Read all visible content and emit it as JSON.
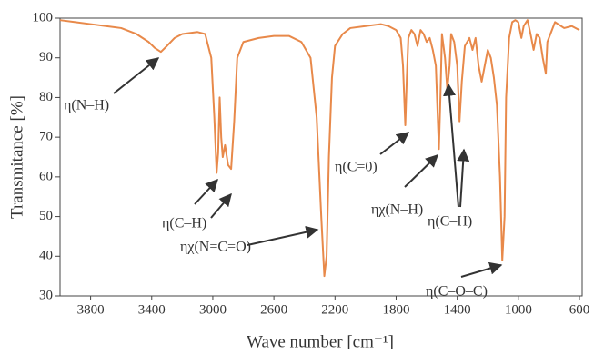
{
  "chart_data": {
    "type": "line",
    "x_label": "Wave number [cm⁻¹]",
    "y_label": "Transmitance [%]",
    "x": [
      4000,
      3900,
      3800,
      3700,
      3600,
      3500,
      3420,
      3380,
      3340,
      3300,
      3250,
      3200,
      3100,
      3050,
      3010,
      2990,
      2975,
      2965,
      2955,
      2945,
      2935,
      2920,
      2900,
      2880,
      2860,
      2840,
      2800,
      2700,
      2600,
      2500,
      2420,
      2360,
      2320,
      2290,
      2270,
      2255,
      2240,
      2220,
      2200,
      2150,
      2100,
      2000,
      1900,
      1850,
      1800,
      1770,
      1755,
      1740,
      1730,
      1720,
      1700,
      1680,
      1660,
      1640,
      1620,
      1600,
      1580,
      1560,
      1540,
      1520,
      1510,
      1500,
      1480,
      1465,
      1450,
      1440,
      1420,
      1400,
      1385,
      1370,
      1350,
      1320,
      1300,
      1280,
      1260,
      1240,
      1220,
      1200,
      1180,
      1160,
      1140,
      1120,
      1105,
      1090,
      1080,
      1060,
      1040,
      1020,
      1000,
      980,
      965,
      940,
      920,
      900,
      880,
      860,
      840,
      820,
      810,
      780,
      760,
      700,
      650,
      600
    ],
    "series": [
      {
        "color": "#e8894a",
        "values": [
          99.5,
          99,
          98.5,
          98,
          97.5,
          96,
          94,
          92.5,
          91.5,
          93,
          95,
          96,
          96.5,
          96,
          90,
          75,
          61,
          66,
          80,
          70,
          65,
          68,
          63,
          62,
          74,
          90,
          94,
          95,
          95.5,
          95.5,
          94,
          90,
          75,
          50,
          35,
          40,
          65,
          85,
          93,
          96,
          97.5,
          98,
          98.5,
          98,
          97,
          95,
          88,
          73,
          85,
          95,
          97,
          96,
          93,
          97,
          96,
          94,
          95,
          92,
          88,
          67,
          80,
          96,
          90,
          82,
          88,
          96,
          94,
          88,
          74,
          84,
          93,
          95,
          92,
          95,
          88,
          84,
          88,
          92,
          90,
          85,
          78,
          60,
          39,
          50,
          80,
          95,
          99,
          99.5,
          99,
          95,
          98,
          99.5,
          96,
          92,
          96,
          95,
          90,
          86,
          94,
          97,
          99,
          97.5,
          98,
          97
        ]
      }
    ],
    "xlim": [
      4000,
      600
    ],
    "xticks": [
      3800,
      3400,
      3000,
      2600,
      2200,
      1800,
      1400,
      1000,
      600
    ],
    "ylim": [
      30,
      100
    ],
    "yticks": [
      30,
      40,
      50,
      60,
      70,
      80,
      90,
      100
    ],
    "annotations": [
      "η(N–H)",
      "η(C–H)",
      "ηχ(N=C=O)",
      "η(C=0)",
      "ηχ(N–H)",
      "η(C–H)",
      "η(C–O–C)"
    ]
  }
}
